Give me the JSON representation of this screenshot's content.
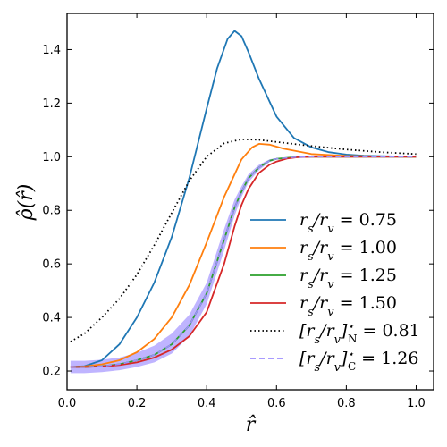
{
  "chart_data": {
    "type": "line",
    "xlabel": "r̂",
    "ylabel": "ρ̂(r̂)",
    "xlim": [
      0.0,
      1.05
    ],
    "ylim": [
      0.13,
      1.535
    ],
    "xticks": [
      0.0,
      0.2,
      0.4,
      0.6,
      0.8,
      1.0
    ],
    "yticks": [
      0.2,
      0.4,
      0.6,
      0.8,
      1.0,
      1.2,
      1.4
    ],
    "grid": false,
    "legend_position": "center-right",
    "series": [
      {
        "name": "r_s/r_v = 0.75",
        "color": "#1f77b4",
        "style": "solid",
        "x": [
          0.01,
          0.05,
          0.1,
          0.15,
          0.2,
          0.25,
          0.3,
          0.35,
          0.4,
          0.43,
          0.46,
          0.48,
          0.5,
          0.52,
          0.55,
          0.6,
          0.65,
          0.7,
          0.75,
          0.8,
          0.85,
          0.9,
          0.95,
          1.0
        ],
        "y": [
          0.215,
          0.218,
          0.24,
          0.3,
          0.4,
          0.53,
          0.7,
          0.92,
          1.18,
          1.33,
          1.44,
          1.47,
          1.45,
          1.39,
          1.29,
          1.15,
          1.07,
          1.035,
          1.017,
          1.008,
          1.004,
          1.002,
          1.001,
          1.0
        ]
      },
      {
        "name": "r_s/r_v = 1.00",
        "color": "#ff7f0e",
        "style": "solid",
        "x": [
          0.01,
          0.05,
          0.1,
          0.15,
          0.2,
          0.25,
          0.3,
          0.35,
          0.4,
          0.45,
          0.5,
          0.53,
          0.55,
          0.58,
          0.62,
          0.7,
          0.8,
          0.9,
          1.0
        ],
        "y": [
          0.215,
          0.217,
          0.225,
          0.24,
          0.27,
          0.32,
          0.4,
          0.52,
          0.68,
          0.85,
          0.99,
          1.035,
          1.048,
          1.045,
          1.03,
          1.01,
          1.003,
          1.001,
          1.0
        ]
      },
      {
        "name": "r_s/r_v = 1.25",
        "color": "#2ca02c",
        "style": "solid",
        "x": [
          0.01,
          0.05,
          0.1,
          0.15,
          0.2,
          0.25,
          0.3,
          0.35,
          0.4,
          0.45,
          0.48,
          0.5,
          0.52,
          0.55,
          0.58,
          0.6,
          0.65,
          0.7,
          0.8,
          0.9,
          1.0
        ],
        "y": [
          0.215,
          0.215,
          0.218,
          0.225,
          0.24,
          0.26,
          0.3,
          0.37,
          0.49,
          0.69,
          0.81,
          0.87,
          0.92,
          0.96,
          0.985,
          0.992,
          0.998,
          1.0,
          1.0,
          1.0,
          1.0
        ]
      },
      {
        "name": "r_s/r_v = 1.50",
        "color": "#d62728",
        "style": "solid",
        "x": [
          0.01,
          0.05,
          0.1,
          0.15,
          0.2,
          0.25,
          0.3,
          0.35,
          0.4,
          0.45,
          0.48,
          0.5,
          0.52,
          0.55,
          0.58,
          0.6,
          0.63,
          0.66,
          0.7,
          0.8,
          0.9,
          1.0
        ],
        "y": [
          0.215,
          0.215,
          0.217,
          0.222,
          0.232,
          0.25,
          0.28,
          0.33,
          0.42,
          0.6,
          0.74,
          0.82,
          0.88,
          0.94,
          0.97,
          0.982,
          0.993,
          0.998,
          1.0,
          1.0,
          1.0,
          1.0
        ]
      },
      {
        "name": "[r_s/r_v]*_N = 0.81",
        "color": "#000000",
        "style": "dotted",
        "x": [
          0.01,
          0.05,
          0.1,
          0.15,
          0.2,
          0.25,
          0.3,
          0.35,
          0.4,
          0.45,
          0.5,
          0.55,
          0.6,
          0.7,
          0.8,
          0.9,
          1.0
        ],
        "y": [
          0.31,
          0.34,
          0.4,
          0.47,
          0.56,
          0.67,
          0.79,
          0.91,
          1.0,
          1.05,
          1.065,
          1.063,
          1.055,
          1.04,
          1.027,
          1.017,
          1.01
        ]
      },
      {
        "name": "[r_s/r_v]*_C = 1.26",
        "color": "#9c8cff",
        "style": "dashed",
        "x": [
          0.01,
          0.05,
          0.1,
          0.15,
          0.2,
          0.25,
          0.3,
          0.35,
          0.4,
          0.45,
          0.48,
          0.5,
          0.52,
          0.55,
          0.58,
          0.6,
          0.65,
          0.7,
          0.8,
          0.9,
          1.0
        ],
        "y": [
          0.215,
          0.215,
          0.218,
          0.225,
          0.24,
          0.26,
          0.3,
          0.37,
          0.49,
          0.69,
          0.81,
          0.87,
          0.92,
          0.96,
          0.985,
          0.992,
          0.998,
          1.0,
          1.0,
          1.0,
          1.0
        ],
        "band_upper": [
          0.238,
          0.238,
          0.242,
          0.25,
          0.268,
          0.295,
          0.34,
          0.41,
          0.53,
          0.73,
          0.84,
          0.89,
          0.935,
          0.97,
          0.99,
          0.995,
          0.999,
          1.0,
          1.0,
          1.0,
          1.0
        ],
        "band_lower": [
          0.192,
          0.192,
          0.196,
          0.203,
          0.215,
          0.232,
          0.265,
          0.33,
          0.45,
          0.65,
          0.78,
          0.85,
          0.905,
          0.95,
          0.98,
          0.989,
          0.997,
          1.0,
          1.0,
          1.0,
          1.0
        ]
      }
    ]
  },
  "legend": [
    {
      "text_main": "r",
      "sub1": "s",
      "mid": "/r",
      "sub2": "v",
      "tail": " = 0.75",
      "color": "#1f77b4",
      "style": "solid"
    },
    {
      "text_main": "r",
      "sub1": "s",
      "mid": "/r",
      "sub2": "v",
      "tail": " = 1.00",
      "color": "#ff7f0e",
      "style": "solid"
    },
    {
      "text_main": "r",
      "sub1": "s",
      "mid": "/r",
      "sub2": "v",
      "tail": " = 1.25",
      "color": "#2ca02c",
      "style": "solid"
    },
    {
      "text_main": "r",
      "sub1": "s",
      "mid": "/r",
      "sub2": "v",
      "tail": " = 1.50",
      "color": "#d62728",
      "style": "solid"
    },
    {
      "text_main": "[r",
      "sub1": "s",
      "mid": "/r",
      "sub2": "v",
      "tail": "]",
      "sup": "⋆",
      "subN": "N",
      "value": " = 0.81",
      "color": "#000000",
      "style": "dotted"
    },
    {
      "text_main": "[r",
      "sub1": "s",
      "mid": "/r",
      "sub2": "v",
      "tail": "]",
      "sup": "⋆",
      "subN": "C",
      "value": " = 1.26",
      "color": "#9c8cff",
      "style": "dashed"
    }
  ]
}
